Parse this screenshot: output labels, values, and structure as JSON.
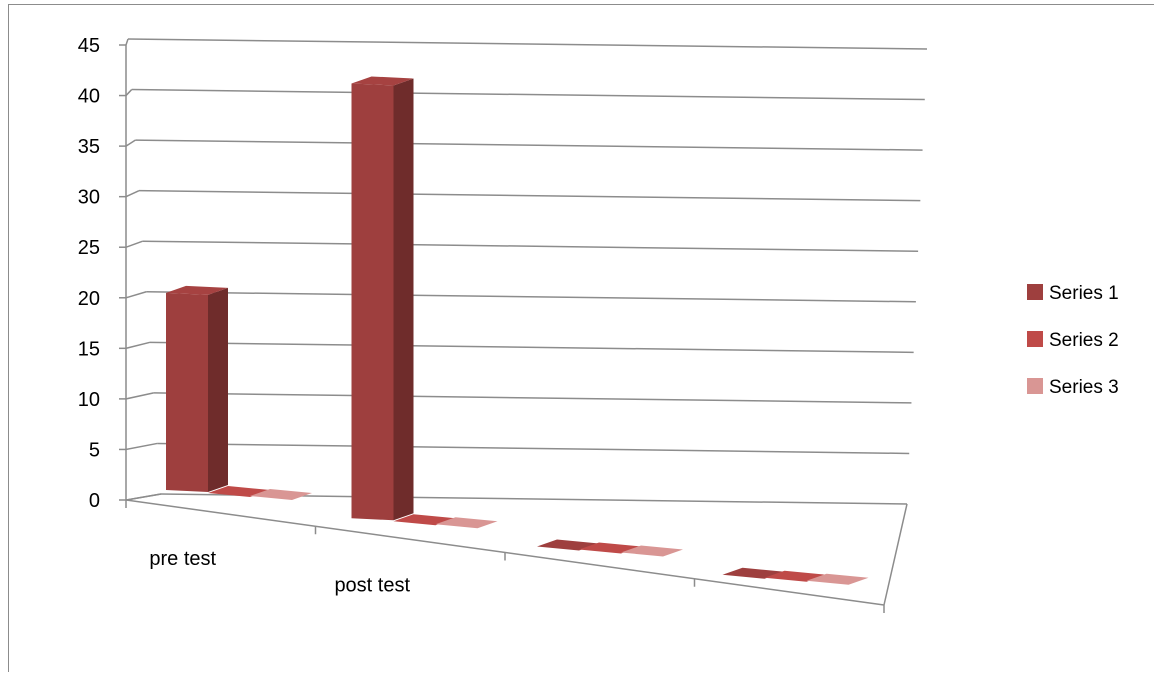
{
  "chart_data": {
    "type": "bar",
    "subtype": "3d-column",
    "categories": [
      "pre test",
      "post test",
      "",
      ""
    ],
    "series": [
      {
        "name": "Series 1",
        "values": [
          19.5,
          43,
          0,
          0
        ],
        "color": "#9e3f3e"
      },
      {
        "name": "Series 2",
        "values": [
          0,
          0,
          0,
          0
        ],
        "color": "#bf4a48"
      },
      {
        "name": "Series 3",
        "values": [
          0,
          0,
          0,
          0
        ],
        "color": "#d99694"
      }
    ],
    "yticks": [
      0,
      5,
      10,
      15,
      20,
      25,
      30,
      35,
      40,
      45
    ],
    "ylim": [
      0,
      45
    ],
    "grid": true,
    "legend": "right"
  }
}
